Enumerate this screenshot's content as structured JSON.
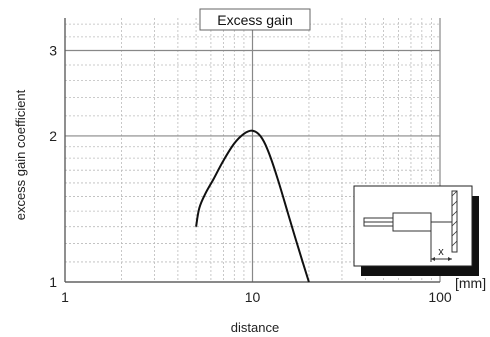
{
  "chart_data": {
    "type": "line",
    "title": "Excess gain",
    "xlabel": "distance",
    "ylabel": "excess gain coefficient",
    "x_unit": "[mm]",
    "x_scale": "log",
    "y_scale": "log",
    "xlim": [
      1,
      100
    ],
    "ylim": [
      1,
      3.5
    ],
    "grid": true,
    "x_ticks": [
      {
        "value": 1,
        "label": "1"
      },
      {
        "value": 10,
        "label": "10"
      },
      {
        "value": 100,
        "label": "100"
      }
    ],
    "y_ticks": [
      {
        "value": 1,
        "label": "1"
      },
      {
        "value": 2,
        "label": "2"
      },
      {
        "value": 3,
        "label": "3"
      }
    ],
    "series": [
      {
        "x": [
          5.0,
          5.2,
          5.6,
          6.2,
          7.0,
          8.0,
          9.0,
          10.0,
          11.0,
          12.0,
          13.5,
          15.5,
          17.5,
          20.0
        ],
        "y": [
          1.3,
          1.42,
          1.52,
          1.63,
          1.78,
          1.93,
          2.02,
          2.05,
          2.0,
          1.88,
          1.65,
          1.38,
          1.18,
          1.0
        ]
      }
    ],
    "inset": {
      "symbol": "x",
      "description_hidden": true
    },
    "colors": {
      "line": "#111111",
      "major_grid": "#888888",
      "minor_grid": "#bbbbbb",
      "frame": "#555555"
    }
  }
}
